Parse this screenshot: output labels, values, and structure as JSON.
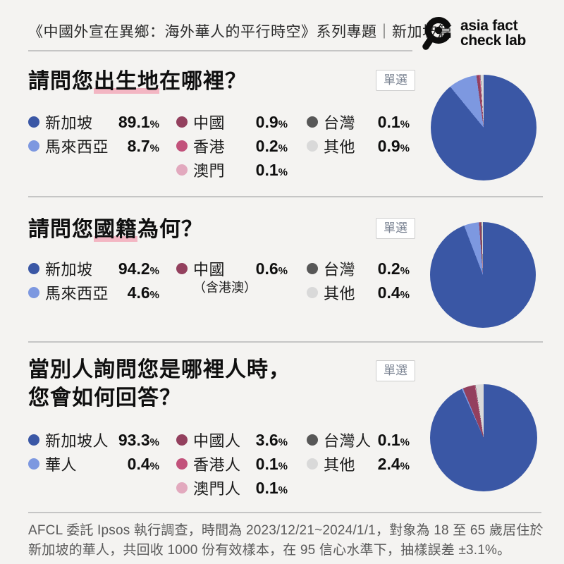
{
  "header": {
    "title": "《中國外宣在異鄉：海外華人的平行時空》系列專題｜新加坡篇",
    "logo_line1": "asia fact",
    "logo_line2": "check lab",
    "logo_icon": "magnifier-icon"
  },
  "colors": {
    "background": "#F4F3F1",
    "divider": "#C5C5C5",
    "badge_text": "#7B8493",
    "badge_border": "#CCCCCC",
    "highlight_underline": "#F3B6C3",
    "footer_text": "#5A5A5A",
    "singapore_blue": "#3A57A5",
    "malaysia_blue": "#7D98E0",
    "china_maroon": "#93405E",
    "hongkong_rose": "#C2527B",
    "macau_pink": "#E2A9BE",
    "taiwan_gray": "#575757",
    "other_gray": "#D9D9D9"
  },
  "chart_data": [
    {
      "type": "pie",
      "title_pre": "請問您",
      "title_mark": "出生地",
      "title_post": "在哪裡？",
      "title_line2": "",
      "badge": "單選",
      "categories": [
        "新加坡",
        "馬來西亞",
        "中國",
        "香港",
        "澳門",
        "台灣",
        "其他"
      ],
      "values": [
        89.1,
        8.7,
        0.9,
        0.2,
        0.1,
        0.1,
        0.9
      ],
      "notes": [
        "",
        "",
        "",
        "",
        "",
        "",
        ""
      ],
      "slice_colors": [
        "#3A57A5",
        "#7D98E0",
        "#93405E",
        "#C2527B",
        "#E2A9BE",
        "#575757",
        "#D9D9D9"
      ],
      "legend_columns": [
        [
          0,
          1
        ],
        [
          2,
          3,
          4
        ],
        [
          5,
          6
        ]
      ],
      "value_suffix": "%",
      "start_angle_deg": 0,
      "direction": "clockwise"
    },
    {
      "type": "pie",
      "title_pre": "請問您",
      "title_mark": "國籍",
      "title_post": "為何？",
      "title_line2": "",
      "badge": "單選",
      "categories": [
        "新加坡",
        "馬來西亞",
        "中國",
        "台灣",
        "其他"
      ],
      "values": [
        94.2,
        4.6,
        0.6,
        0.2,
        0.4
      ],
      "notes": [
        "",
        "",
        "（含港澳）",
        "",
        ""
      ],
      "slice_colors": [
        "#3A57A5",
        "#7D98E0",
        "#93405E",
        "#575757",
        "#D9D9D9"
      ],
      "legend_columns": [
        [
          0,
          1
        ],
        [
          2
        ],
        [
          3,
          4
        ]
      ],
      "value_suffix": "%",
      "start_angle_deg": 0,
      "direction": "clockwise"
    },
    {
      "type": "pie",
      "title_pre": "當別人詢問您是哪裡人時，",
      "title_mark": "",
      "title_post": "",
      "title_line2": "您會如何回答？",
      "badge": "單選",
      "categories": [
        "新加坡人",
        "華人",
        "中國人",
        "香港人",
        "澳門人",
        "台灣人",
        "其他"
      ],
      "values": [
        93.3,
        0.4,
        3.6,
        0.1,
        0.1,
        0.1,
        2.4
      ],
      "notes": [
        "",
        "",
        "",
        "",
        "",
        "",
        ""
      ],
      "slice_colors": [
        "#3A57A5",
        "#7D98E0",
        "#93405E",
        "#C2527B",
        "#E2A9BE",
        "#575757",
        "#D9D9D9"
      ],
      "legend_columns": [
        [
          0,
          1
        ],
        [
          2,
          3,
          4
        ],
        [
          5,
          6
        ]
      ],
      "value_suffix": "%",
      "start_angle_deg": 0,
      "direction": "clockwise"
    }
  ],
  "footer": {
    "line1": "AFCL 委託 Ipsos 執行調查，時間為 2023/12/21~2024/1/1，對象為 18 至 65 歲居住於",
    "line2": "新加坡的華人，共回收 1000 份有效樣本，在 95 信心水準下，抽樣誤差 ±3.1%。"
  }
}
